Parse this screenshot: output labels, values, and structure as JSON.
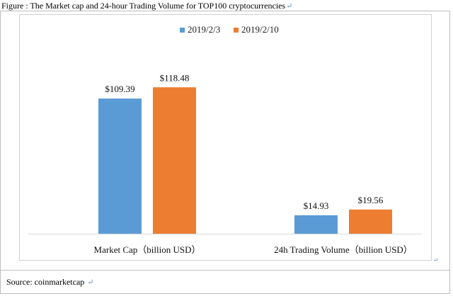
{
  "caption": {
    "text": "Figure : The Market cap and 24-hour Trading Volume for TOP100 cryptocurrencies",
    "return_mark": "↵"
  },
  "source": {
    "text": "Source: coinmarketcap",
    "return_mark": "↵"
  },
  "colors": {
    "series_1": "#5b9bd5",
    "series_2": "#ed7d31",
    "axis": "#d9d9d9"
  },
  "chart_data": {
    "type": "bar",
    "categories": [
      "Market Cap（billion USD）",
      "24h Trading Volume（billion USD）"
    ],
    "series": [
      {
        "name": "2019/2/3",
        "values": [
          109.39,
          14.93
        ],
        "labels": [
          "$109.39",
          "$14.93"
        ]
      },
      {
        "name": "2019/2/10",
        "values": [
          118.48,
          19.56
        ],
        "labels": [
          "$118.48",
          "$19.56"
        ]
      }
    ],
    "title": "",
    "xlabel": "",
    "ylabel": "",
    "ylim": [
      0,
      140
    ],
    "grid": false,
    "legend": "top-center"
  }
}
